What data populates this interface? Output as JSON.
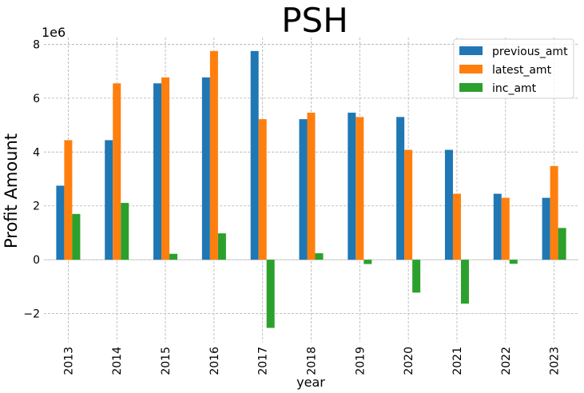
{
  "chart_data": {
    "type": "bar",
    "title": "PSH",
    "xlabel": "year",
    "ylabel": "Profit Amount",
    "offset_label": "1e6",
    "categories": [
      "2013",
      "2014",
      "2015",
      "2016",
      "2017",
      "2018",
      "2019",
      "2020",
      "2021",
      "2022",
      "2023"
    ],
    "yticks": [
      -2,
      0,
      2,
      4,
      6,
      8
    ],
    "ytick_labels": [
      "−2",
      "0",
      "2",
      "4",
      "6",
      "8"
    ],
    "ylim": [
      -3.05,
      8.25
    ],
    "y_scale": 1000000,
    "grid": true,
    "legend_position": "top-right",
    "series": [
      {
        "name": "previous_amt",
        "color": "#1f77b4",
        "values": [
          2.75,
          4.44,
          6.55,
          6.77,
          7.75,
          5.22,
          5.46,
          5.3,
          4.08,
          2.45,
          2.3
        ]
      },
      {
        "name": "latest_amt",
        "color": "#ff7f0e",
        "values": [
          4.44,
          6.55,
          6.77,
          7.75,
          5.22,
          5.46,
          5.3,
          4.08,
          2.45,
          2.3,
          3.48
        ]
      },
      {
        "name": "inc_amt",
        "color": "#2ca02c",
        "values": [
          1.7,
          2.11,
          0.22,
          0.98,
          -2.53,
          0.24,
          -0.16,
          -1.22,
          -1.63,
          -0.15,
          1.18
        ]
      }
    ]
  }
}
